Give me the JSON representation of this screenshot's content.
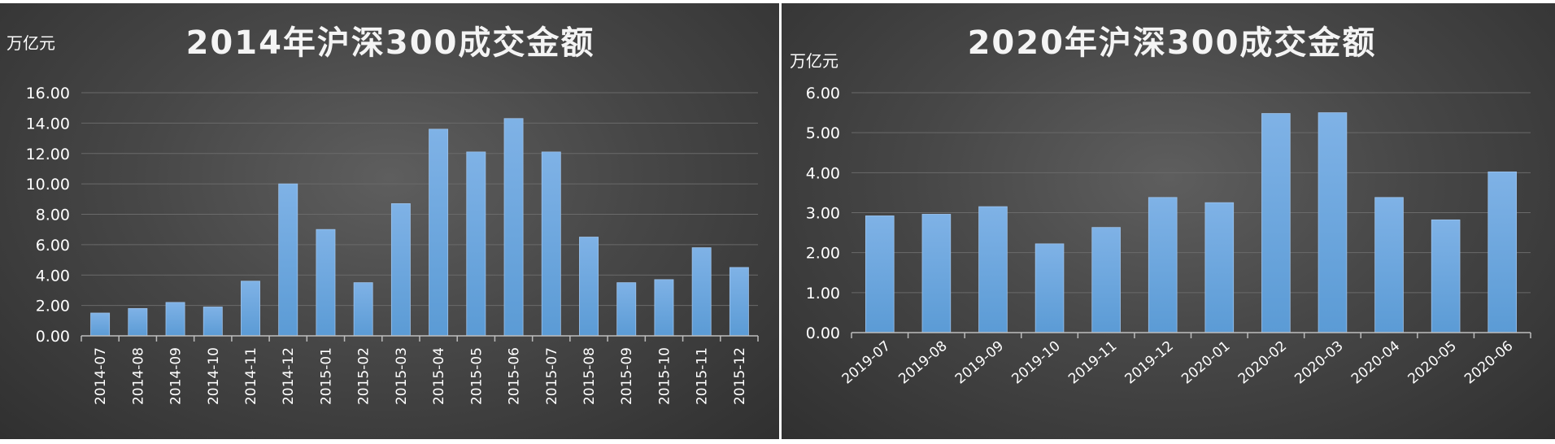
{
  "chart_data": [
    {
      "type": "bar",
      "title": "2014年沪深300成交金额",
      "ylabel": "万亿元",
      "xlabel": "",
      "ylim": [
        0,
        16
      ],
      "ytick_step": 2,
      "ytick_decimals": 2,
      "grid": true,
      "legend": "none",
      "bar_color": "#5b9bd5",
      "categories": [
        "2014-07",
        "2014-08",
        "2014-09",
        "2014-10",
        "2014-11",
        "2014-12",
        "2015-01",
        "2015-02",
        "2015-03",
        "2015-04",
        "2015-05",
        "2015-06",
        "2015-07",
        "2015-08",
        "2015-09",
        "2015-10",
        "2015-11",
        "2015-12"
      ],
      "values": [
        1.5,
        1.8,
        2.2,
        1.9,
        3.6,
        10.0,
        7.0,
        3.5,
        8.7,
        13.6,
        12.1,
        14.3,
        12.1,
        6.5,
        3.5,
        3.7,
        5.8,
        4.5
      ]
    },
    {
      "type": "bar",
      "title": "2020年沪深300成交金额",
      "ylabel": "万亿元",
      "xlabel": "",
      "ylim": [
        0,
        6
      ],
      "ytick_step": 1,
      "ytick_decimals": 2,
      "grid": true,
      "legend": "none",
      "bar_color": "#5b9bd5",
      "categories": [
        "2019-07",
        "2019-08",
        "2019-09",
        "2019-10",
        "2019-11",
        "2019-12",
        "2020-01",
        "2020-02",
        "2020-03",
        "2020-04",
        "2020-05",
        "2020-06"
      ],
      "values": [
        2.92,
        2.96,
        3.15,
        2.22,
        2.63,
        3.38,
        3.25,
        5.48,
        5.5,
        3.38,
        2.82,
        4.02
      ]
    }
  ]
}
